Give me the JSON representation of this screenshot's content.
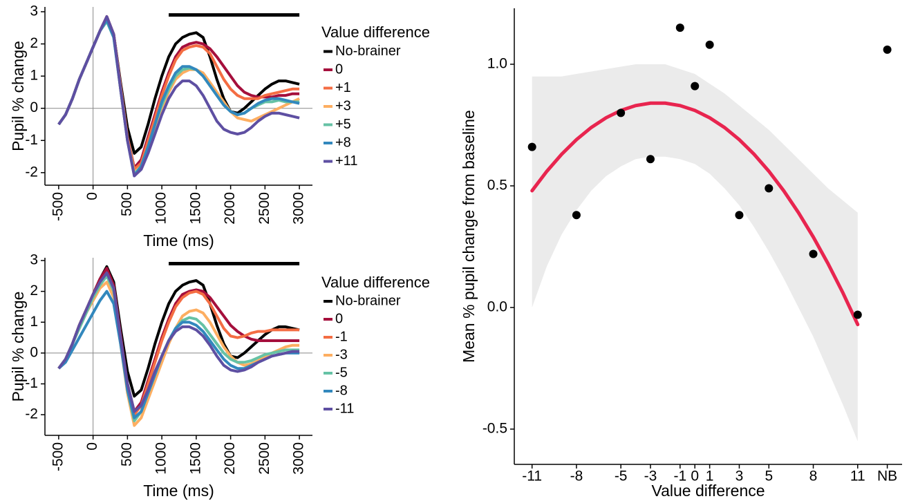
{
  "chart_data": [
    {
      "type": "line",
      "xlabel": "Time (ms)",
      "ylabel": "Pupil % change",
      "legend_title": "Value difference",
      "xlim": [
        -700,
        3190
      ],
      "ylim": [
        -2.39,
        3.15
      ],
      "xticks": [
        -500,
        0,
        500,
        1000,
        1500,
        2000,
        2500,
        3000
      ],
      "yticks": [
        -2,
        -1,
        0,
        1,
        2,
        3
      ],
      "vline": 0,
      "hline": 0,
      "significance_bar": [
        1100,
        3000
      ],
      "significance_y": 2.9,
      "x": [
        -500,
        -400,
        -300,
        -200,
        -100,
        0,
        100,
        200,
        300,
        400,
        500,
        600,
        700,
        800,
        900,
        1000,
        1100,
        1200,
        1300,
        1400,
        1500,
        1600,
        1700,
        1800,
        1900,
        2000,
        2100,
        2200,
        2300,
        2400,
        2500,
        2600,
        2700,
        2800,
        2900,
        3000
      ],
      "series": [
        {
          "name": "No-brainer",
          "color": "#000000",
          "values": [
            -0.5,
            -0.2,
            0.3,
            0.9,
            1.4,
            1.9,
            2.4,
            2.8,
            2.3,
            0.8,
            -0.6,
            -1.4,
            -1.2,
            -0.5,
            0.3,
            1.0,
            1.6,
            2.0,
            2.2,
            2.3,
            2.35,
            2.2,
            1.6,
            0.9,
            0.3,
            -0.1,
            -0.15,
            0.0,
            0.2,
            0.4,
            0.6,
            0.75,
            0.85,
            0.85,
            0.8,
            0.75
          ]
        },
        {
          "name": "0",
          "color": "#a50f3c",
          "values": [
            -0.5,
            -0.2,
            0.3,
            0.9,
            1.4,
            1.9,
            2.4,
            2.85,
            2.3,
            0.7,
            -0.9,
            -1.85,
            -1.6,
            -0.9,
            -0.2,
            0.5,
            1.1,
            1.6,
            1.9,
            2.0,
            2.05,
            2.0,
            1.85,
            1.6,
            1.3,
            1.0,
            0.7,
            0.5,
            0.4,
            0.35,
            0.35,
            0.35,
            0.4,
            0.4,
            0.45,
            0.45
          ]
        },
        {
          "name": "+1",
          "color": "#f46d43",
          "values": [
            -0.5,
            -0.2,
            0.3,
            0.9,
            1.4,
            1.9,
            2.4,
            2.85,
            2.3,
            0.7,
            -0.9,
            -1.9,
            -1.7,
            -1.0,
            -0.3,
            0.4,
            1.0,
            1.5,
            1.8,
            1.9,
            1.95,
            1.9,
            1.7,
            1.3,
            0.9,
            0.6,
            0.4,
            0.3,
            0.3,
            0.3,
            0.4,
            0.45,
            0.5,
            0.55,
            0.6,
            0.6
          ]
        },
        {
          "name": "+3",
          "color": "#fdae61",
          "values": [
            -0.5,
            -0.2,
            0.3,
            0.9,
            1.4,
            1.9,
            2.4,
            2.8,
            2.3,
            0.6,
            -1.0,
            -2.0,
            -1.8,
            -1.2,
            -0.6,
            0.0,
            0.5,
            0.9,
            1.1,
            1.2,
            1.2,
            1.1,
            0.8,
            0.5,
            0.2,
            -0.1,
            -0.3,
            -0.35,
            -0.4,
            -0.3,
            -0.2,
            -0.1,
            0.0,
            0.1,
            0.2,
            0.3
          ]
        },
        {
          "name": "+5",
          "color": "#66c2a5",
          "values": [
            -0.5,
            -0.2,
            0.3,
            0.9,
            1.4,
            1.9,
            2.4,
            2.7,
            2.2,
            0.6,
            -1.0,
            -2.05,
            -1.8,
            -1.2,
            -0.5,
            0.1,
            0.6,
            1.0,
            1.2,
            1.25,
            1.2,
            1.0,
            0.7,
            0.4,
            0.1,
            -0.1,
            -0.2,
            -0.15,
            0.0,
            0.1,
            0.2,
            0.2,
            0.25,
            0.2,
            0.2,
            0.2
          ]
        },
        {
          "name": "+8",
          "color": "#3288bd",
          "values": [
            -0.5,
            -0.2,
            0.3,
            0.9,
            1.4,
            1.9,
            2.4,
            2.75,
            2.2,
            0.6,
            -1.0,
            -2.1,
            -1.8,
            -1.2,
            -0.5,
            0.2,
            0.7,
            1.1,
            1.3,
            1.3,
            1.2,
            1.0,
            0.7,
            0.4,
            0.1,
            -0.1,
            -0.2,
            -0.15,
            0.0,
            0.15,
            0.25,
            0.3,
            0.3,
            0.25,
            0.2,
            0.15
          ]
        },
        {
          "name": "+11",
          "color": "#5e4fa2",
          "values": [
            -0.5,
            -0.2,
            0.3,
            0.9,
            1.4,
            1.9,
            2.4,
            2.85,
            2.3,
            0.6,
            -1.0,
            -2.1,
            -1.9,
            -1.4,
            -0.8,
            -0.2,
            0.3,
            0.65,
            0.85,
            0.85,
            0.7,
            0.4,
            0.0,
            -0.4,
            -0.65,
            -0.75,
            -0.8,
            -0.75,
            -0.6,
            -0.4,
            -0.25,
            -0.15,
            -0.15,
            -0.2,
            -0.25,
            -0.3
          ]
        }
      ]
    },
    {
      "type": "line",
      "xlabel": "Time (ms)",
      "ylabel": "Pupil % change",
      "legend_title": "Value difference",
      "xlim": [
        -700,
        3190
      ],
      "ylim": [
        -2.67,
        3.09
      ],
      "xticks": [
        -500,
        0,
        500,
        1000,
        1500,
        2000,
        2500,
        3000
      ],
      "yticks": [
        -2,
        -1,
        0,
        1,
        2,
        3
      ],
      "vline": 0,
      "hline": 0,
      "significance_bar": [
        1100,
        3000
      ],
      "significance_y": 2.9,
      "x": [
        -500,
        -400,
        -300,
        -200,
        -100,
        0,
        100,
        200,
        300,
        400,
        500,
        600,
        700,
        800,
        900,
        1000,
        1100,
        1200,
        1300,
        1400,
        1500,
        1600,
        1700,
        1800,
        1900,
        2000,
        2100,
        2200,
        2300,
        2400,
        2500,
        2600,
        2700,
        2800,
        2900,
        3000
      ],
      "series": [
        {
          "name": "No-brainer",
          "color": "#000000",
          "values": [
            -0.5,
            -0.2,
            0.3,
            0.9,
            1.4,
            1.9,
            2.4,
            2.8,
            2.3,
            0.8,
            -0.6,
            -1.4,
            -1.2,
            -0.5,
            0.3,
            1.0,
            1.6,
            2.0,
            2.2,
            2.3,
            2.35,
            2.2,
            1.6,
            0.9,
            0.3,
            -0.1,
            -0.15,
            0.0,
            0.2,
            0.4,
            0.6,
            0.75,
            0.85,
            0.85,
            0.8,
            0.75
          ]
        },
        {
          "name": "0",
          "color": "#a50f3c",
          "values": [
            -0.5,
            -0.2,
            0.3,
            0.9,
            1.4,
            1.9,
            2.4,
            2.75,
            2.2,
            0.6,
            -1.0,
            -1.9,
            -1.6,
            -0.9,
            -0.2,
            0.5,
            1.1,
            1.6,
            1.9,
            2.0,
            2.05,
            2.0,
            1.8,
            1.5,
            1.2,
            0.9,
            0.7,
            0.55,
            0.45,
            0.4,
            0.4,
            0.4,
            0.4,
            0.4,
            0.4,
            0.4
          ]
        },
        {
          "name": "-1",
          "color": "#f46d43",
          "values": [
            -0.5,
            -0.2,
            0.3,
            0.9,
            1.4,
            1.9,
            2.3,
            2.6,
            2.1,
            0.5,
            -1.1,
            -2.0,
            -1.7,
            -1.0,
            -0.3,
            0.4,
            1.0,
            1.5,
            1.8,
            1.95,
            2.0,
            1.9,
            1.6,
            1.2,
            0.8,
            0.55,
            0.5,
            0.55,
            0.65,
            0.7,
            0.7,
            0.75,
            0.75,
            0.75,
            0.75,
            0.75
          ]
        },
        {
          "name": "-3",
          "color": "#fdae61",
          "values": [
            -0.5,
            -0.2,
            0.3,
            0.8,
            1.3,
            1.7,
            2.1,
            2.3,
            1.8,
            0.3,
            -1.3,
            -2.35,
            -2.1,
            -1.5,
            -0.9,
            -0.3,
            0.3,
            0.8,
            1.2,
            1.35,
            1.4,
            1.3,
            1.0,
            0.6,
            0.2,
            -0.1,
            -0.3,
            -0.4,
            -0.35,
            -0.25,
            -0.1,
            0.0,
            0.1,
            0.2,
            0.25,
            0.25
          ]
        },
        {
          "name": "-5",
          "color": "#66c2a5",
          "values": [
            -0.5,
            -0.2,
            0.3,
            0.8,
            1.3,
            1.8,
            2.2,
            2.5,
            2.0,
            0.4,
            -1.2,
            -2.2,
            -1.9,
            -1.3,
            -0.7,
            -0.1,
            0.4,
            0.8,
            1.05,
            1.15,
            1.1,
            0.9,
            0.6,
            0.3,
            0.0,
            -0.2,
            -0.3,
            -0.3,
            -0.25,
            -0.15,
            -0.05,
            0.0,
            0.05,
            0.1,
            0.1,
            0.1
          ]
        },
        {
          "name": "-8",
          "color": "#3288bd",
          "values": [
            -0.5,
            -0.3,
            0.1,
            0.5,
            0.9,
            1.3,
            1.7,
            2.0,
            1.6,
            0.3,
            -1.2,
            -2.1,
            -1.9,
            -1.3,
            -0.7,
            -0.1,
            0.4,
            0.8,
            1.0,
            1.0,
            0.9,
            0.7,
            0.4,
            0.1,
            -0.2,
            -0.4,
            -0.5,
            -0.5,
            -0.4,
            -0.3,
            -0.2,
            -0.1,
            -0.05,
            0.0,
            0.0,
            0.0
          ]
        },
        {
          "name": "-11",
          "color": "#5e4fa2",
          "values": [
            -0.5,
            -0.2,
            0.3,
            0.9,
            1.4,
            1.9,
            2.3,
            2.6,
            2.1,
            0.5,
            -1.0,
            -1.9,
            -1.7,
            -1.2,
            -0.6,
            -0.1,
            0.4,
            0.7,
            0.85,
            0.85,
            0.75,
            0.55,
            0.25,
            -0.1,
            -0.4,
            -0.55,
            -0.6,
            -0.55,
            -0.45,
            -0.3,
            -0.2,
            -0.1,
            -0.05,
            0.0,
            0.05,
            0.05
          ]
        }
      ]
    },
    {
      "type": "scatter",
      "xlabel": "Value difference",
      "ylabel": "Mean % pupil change from baseline",
      "xlim": [
        -12.2,
        14
      ],
      "ylim": [
        -0.645,
        1.23
      ],
      "xticks": [
        -11,
        -8,
        -5,
        -3,
        -1,
        0,
        1,
        3,
        5,
        8,
        11,
        {
          "value": 13,
          "label": "NB"
        }
      ],
      "yticks": [
        -0.5,
        {
          "value": 0,
          "label": "0.0"
        },
        0.5,
        {
          "value": 1,
          "label": "1.0"
        }
      ],
      "color": "#000000",
      "x": [
        -11,
        -8,
        -5,
        -3,
        -1,
        0,
        1,
        3,
        5,
        8,
        11,
        13
      ],
      "values": [
        0.66,
        0.38,
        0.8,
        0.61,
        1.15,
        0.91,
        1.08,
        0.38,
        0.49,
        0.22,
        -0.03,
        1.06
      ],
      "fit": {
        "color": "#e8254f",
        "band_color": "#ebebeb",
        "x": [
          -11,
          -10,
          -9,
          -8,
          -7,
          -6,
          -5,
          -4,
          -3,
          -2,
          -1,
          0,
          1,
          2,
          3,
          4,
          5,
          6,
          7,
          8,
          9,
          10,
          11
        ],
        "values": [
          0.48,
          0.56,
          0.63,
          0.69,
          0.74,
          0.78,
          0.81,
          0.83,
          0.84,
          0.84,
          0.83,
          0.81,
          0.78,
          0.74,
          0.69,
          0.63,
          0.56,
          0.48,
          0.39,
          0.29,
          0.18,
          0.06,
          -0.07
        ],
        "upper": [
          0.95,
          0.95,
          0.95,
          0.96,
          0.97,
          0.98,
          0.99,
          1.0,
          1.0,
          1.0,
          0.98,
          0.96,
          0.92,
          0.88,
          0.83,
          0.78,
          0.73,
          0.67,
          0.61,
          0.55,
          0.49,
          0.44,
          0.39
        ],
        "lower": [
          0.0,
          0.17,
          0.3,
          0.4,
          0.48,
          0.54,
          0.58,
          0.61,
          0.62,
          0.62,
          0.61,
          0.59,
          0.55,
          0.49,
          0.42,
          0.33,
          0.23,
          0.12,
          0.0,
          -0.12,
          -0.26,
          -0.4,
          -0.55
        ]
      }
    }
  ]
}
